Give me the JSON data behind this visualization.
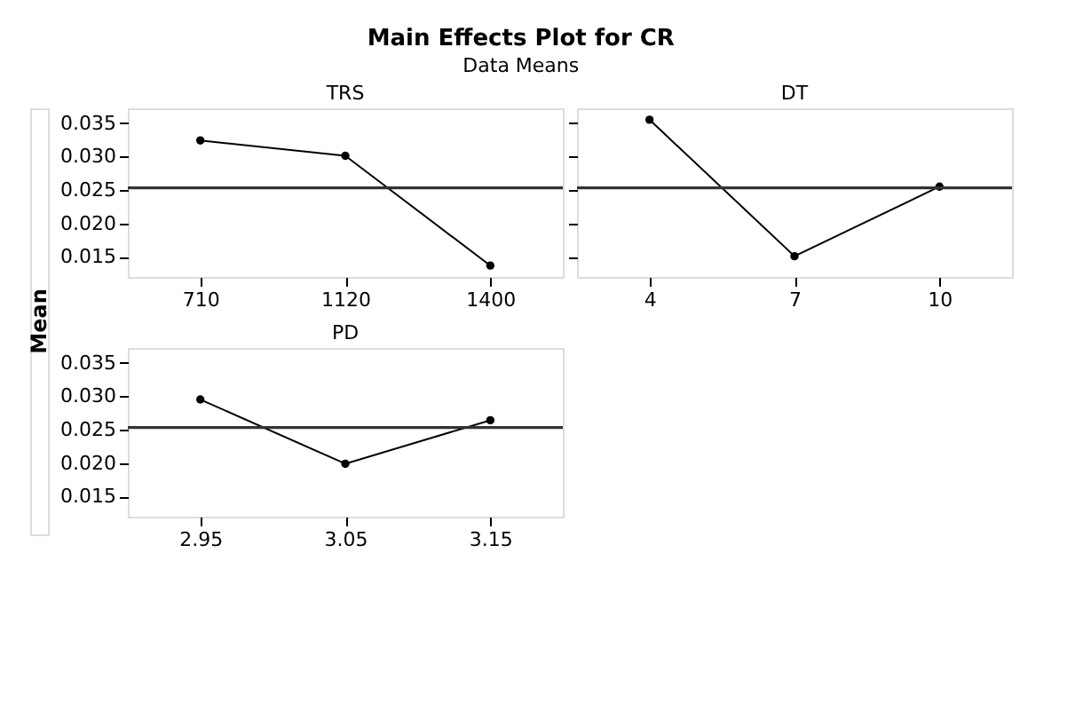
{
  "chart_data": [
    {
      "type": "line",
      "title": "Main Effects Plot for CR",
      "subtitle": "Data Means",
      "ylabel": "Mean",
      "xlabel": "TRS",
      "categories": [
        "710",
        "1120",
        "1400"
      ],
      "values": [
        0.0324,
        0.0301,
        0.0137
      ],
      "color": "#000000",
      "marker": "circle",
      "grid": false,
      "ylim": [
        0.012,
        0.0372
      ],
      "yticks": [
        {
          "value": 0.015,
          "label": "0.015"
        },
        {
          "value": 0.02,
          "label": "0.020"
        },
        {
          "value": 0.025,
          "label": "0.025"
        },
        {
          "value": 0.03,
          "label": "0.030"
        },
        {
          "value": 0.035,
          "label": "0.035"
        }
      ],
      "ref_lines": [
        {
          "axis": "y",
          "value": 0.0253
        }
      ]
    },
    {
      "type": "line",
      "xlabel": "DT",
      "categories": [
        "4",
        "7",
        "10"
      ],
      "values": [
        0.0355,
        0.0151,
        0.0255
      ],
      "color": "#000000",
      "marker": "circle",
      "grid": false,
      "ylim": [
        0.012,
        0.0372
      ],
      "yticks": [
        {
          "value": 0.015,
          "label": null
        },
        {
          "value": 0.02,
          "label": null
        },
        {
          "value": 0.025,
          "label": null
        },
        {
          "value": 0.03,
          "label": null
        },
        {
          "value": 0.035,
          "label": null
        }
      ],
      "tick_labels": "x",
      "ref_lines": [
        {
          "axis": "y",
          "value": 0.0253
        }
      ]
    },
    {
      "type": "line",
      "xlabel": "PD",
      "categories": [
        "2.95",
        "3.05",
        "3.15"
      ],
      "values": [
        0.0295,
        0.0199,
        0.0264
      ],
      "color": "#000000",
      "marker": "circle",
      "grid": false,
      "ylim": [
        0.012,
        0.0372
      ],
      "yticks": [
        {
          "value": 0.015,
          "label": "0.015"
        },
        {
          "value": 0.02,
          "label": "0.020"
        },
        {
          "value": 0.025,
          "label": "0.025"
        },
        {
          "value": 0.03,
          "label": "0.030"
        },
        {
          "value": 0.035,
          "label": "0.035"
        }
      ],
      "ref_lines": [
        {
          "axis": "y",
          "value": 0.0253
        }
      ]
    }
  ]
}
